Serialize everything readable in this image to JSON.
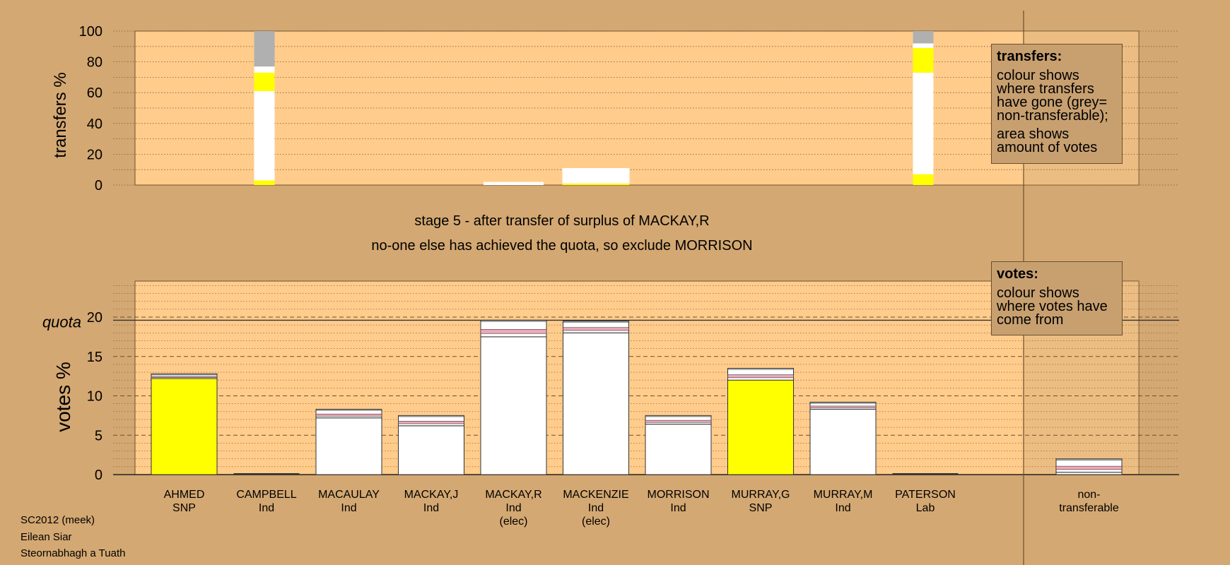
{
  "caption": {
    "stage": "stage 5 - after transfer of surplus of MACKAY,R",
    "note": "no-one else has achieved the quota, so exclude MORRISON"
  },
  "legend_transfers": {
    "heading": "transfers:",
    "line1": "colour shows where transfers have gone (grey= non-transferable);",
    "line2": "area shows amount of votes"
  },
  "legend_votes": {
    "heading": "votes:",
    "line1": "colour shows where votes have come from"
  },
  "footer": {
    "line1": "SC2012 (meek)",
    "line2": "Eilean Siar",
    "line3": "Steornabhagh a Tuath"
  },
  "colors": {
    "background": "#d4a872",
    "plot_background": "#ffcc8c",
    "snp": "#ffff00",
    "independent": "#ffffff",
    "non_transferable": "#b0b0b0",
    "pink": "#f0a8b8"
  },
  "chart_data": [
    {
      "type": "bar",
      "panel": "transfers",
      "ylabel": "transfers %",
      "ylim": [
        0,
        100
      ],
      "yticks": [
        0,
        20,
        40,
        60,
        80,
        100
      ],
      "bars": [
        {
          "candidate": "CAMPBELL",
          "segments": [
            {
              "to": "AHMED",
              "color": "yellow",
              "value": 3
            },
            {
              "to": "Ind",
              "color": "white",
              "value": 58
            },
            {
              "to": "MURRAY,G",
              "color": "yellow",
              "value": 12
            },
            {
              "to": "Ind",
              "color": "white",
              "value": 4
            },
            {
              "to": "non-transferable",
              "color": "grey",
              "value": 23
            }
          ]
        },
        {
          "candidate": "MACKAY,R",
          "segments": [
            {
              "to": "Ind",
              "color": "white",
              "value": 2
            }
          ]
        },
        {
          "candidate": "MACKENZIE",
          "segments": [
            {
              "to": "AHMED",
              "color": "yellow",
              "value": 1
            },
            {
              "to": "Ind",
              "color": "white",
              "value": 10
            }
          ]
        },
        {
          "candidate": "PATERSON",
          "segments": [
            {
              "to": "AHMED",
              "color": "yellow",
              "value": 7
            },
            {
              "to": "Ind",
              "color": "white",
              "value": 66
            },
            {
              "to": "MURRAY,G",
              "color": "yellow",
              "value": 16
            },
            {
              "to": "Ind",
              "color": "white",
              "value": 3
            },
            {
              "to": "non-transferable",
              "color": "grey",
              "value": 8
            }
          ]
        }
      ]
    },
    {
      "type": "bar",
      "panel": "votes",
      "ylabel": "votes %",
      "quota_label": "quota",
      "quota": 19.6,
      "ylim": [
        0,
        25
      ],
      "yticks": [
        0,
        5,
        10,
        15,
        20
      ],
      "categories": [
        {
          "name": "AHMED",
          "party": "SNP",
          "note": ""
        },
        {
          "name": "CAMPBELL",
          "party": "Ind",
          "note": ""
        },
        {
          "name": "MACAULAY",
          "party": "Ind",
          "note": ""
        },
        {
          "name": "MACKAY,J",
          "party": "Ind",
          "note": ""
        },
        {
          "name": "MACKAY,R",
          "party": "Ind",
          "note": "(elec)"
        },
        {
          "name": "MACKENZIE",
          "party": "Ind",
          "note": "(elec)"
        },
        {
          "name": "MORRISON",
          "party": "Ind",
          "note": ""
        },
        {
          "name": "MURRAY,G",
          "party": "SNP",
          "note": ""
        },
        {
          "name": "MURRAY,M",
          "party": "Ind",
          "note": ""
        },
        {
          "name": "PATERSON",
          "party": "Lab",
          "note": ""
        }
      ],
      "nontransferable_label": [
        "non-",
        "transferable"
      ],
      "values": [
        {
          "name": "AHMED",
          "total": 12.8,
          "base": 12.2,
          "base_color": "yellow"
        },
        {
          "name": "CAMPBELL",
          "total": 0,
          "base": 0,
          "base_color": "white"
        },
        {
          "name": "MACAULAY",
          "total": 8.3,
          "base": 7.2,
          "base_color": "white"
        },
        {
          "name": "MACKAY,J",
          "total": 7.5,
          "base": 6.2,
          "base_color": "white"
        },
        {
          "name": "MACKAY,R",
          "total": 19.6,
          "base": 17.5,
          "base_color": "white"
        },
        {
          "name": "MACKENZIE",
          "total": 19.5,
          "base": 18.0,
          "base_color": "white"
        },
        {
          "name": "MORRISON",
          "total": 7.5,
          "base": 6.4,
          "base_color": "white"
        },
        {
          "name": "MURRAY,G",
          "total": 13.5,
          "base": 12.0,
          "base_color": "yellow"
        },
        {
          "name": "MURRAY,M",
          "total": 9.2,
          "base": 8.3,
          "base_color": "white"
        },
        {
          "name": "PATERSON",
          "total": 0,
          "base": 0,
          "base_color": "white"
        },
        {
          "name": "non-transferable",
          "total": 2.0,
          "base": 0.3,
          "base_color": "white"
        }
      ]
    }
  ]
}
